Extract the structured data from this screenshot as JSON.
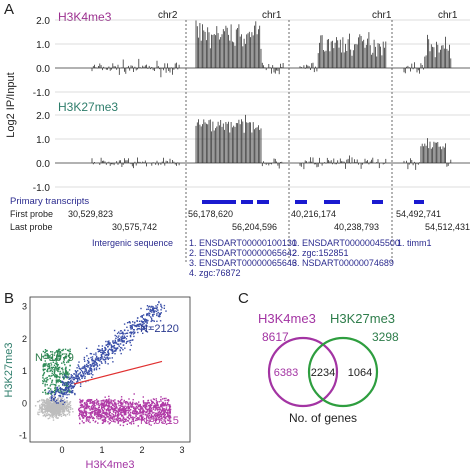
{
  "panel_a": {
    "letter": "A",
    "track1_label": "H3K4me3",
    "track2_label": "H3K27me3",
    "y_axis_label": "Log2 IP/Input",
    "y_ticks": [
      "2.0",
      "1.0",
      "0.0",
      "-1.0"
    ],
    "chromosomes": [
      "chr2",
      "chr1",
      "chr1",
      "chr1"
    ],
    "primary_transcripts_label": "Primary transcripts",
    "first_probe_label": "First probe",
    "last_probe_label": "Last probe",
    "first_probes": [
      "30,529,823",
      "56,178,620",
      "40,216,174",
      "54,492,741"
    ],
    "last_probes": [
      "30,575,742",
      "56,204,596",
      "40,238,793",
      "54,512,431"
    ],
    "segment1_note": "Intergenic sequence",
    "segment2_genes": [
      "1. ENSDART00000100130",
      "2. ENSDART00000065642",
      "3. ENSDART00000065646",
      "4. zgc:76872"
    ],
    "segment3_genes": [
      "1. ENSDART00000045500",
      "2. zgc:152851",
      "3. NSDART00000074689"
    ],
    "segment4_genes": [
      "1. timm1"
    ],
    "colors": {
      "h3k4me3": "#9b2f8f",
      "h3k27me3": "#2e7d6b",
      "transcript_bar": "#1a1ad0",
      "signal": "#333333"
    }
  },
  "panel_b": {
    "letter": "B",
    "chart_data": {
      "type": "scatter",
      "xlabel": "H3K4me3",
      "ylabel": "H3K27me3",
      "x_ticks": [
        "0",
        "1",
        "2",
        "3"
      ],
      "y_ticks": [
        "-1",
        "0",
        "1",
        "2",
        "3"
      ],
      "xlim": [
        -0.8,
        3.2
      ],
      "ylim": [
        -1.2,
        3.3
      ],
      "groups": [
        {
          "label": "N=2120",
          "color": "#3a4fa8"
        },
        {
          "label": "N=1079",
          "color": "#2e8b57"
        },
        {
          "label": "N=6315",
          "color": "#b03aa6"
        }
      ],
      "background_color": "#bdbdbd",
      "regression_line": {
        "x": [
          0.3,
          2.5
        ],
        "y": [
          0.6,
          1.3
        ],
        "color": "#e03030"
      }
    }
  },
  "panel_c": {
    "letter": "C",
    "set1_label": "H3K4me3",
    "set2_label": "H3K27me3",
    "set1_total": "8617",
    "set2_total": "3298",
    "only_set1": "6383",
    "overlap": "2234",
    "only_set2": "1064",
    "caption": "No. of genes",
    "colors": {
      "set1": "#a334a3",
      "set2": "#2e9e3f"
    }
  }
}
